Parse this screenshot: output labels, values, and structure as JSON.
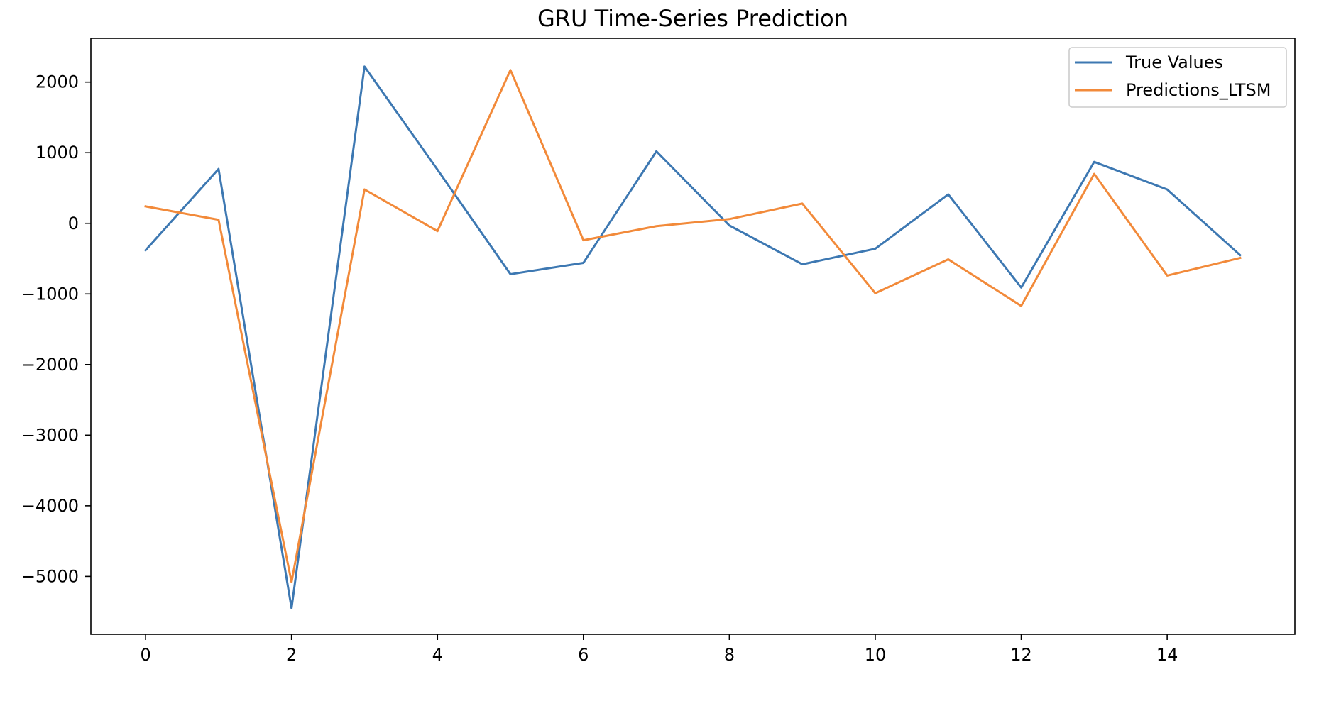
{
  "chart_data": {
    "type": "line",
    "title": "GRU Time-Series Prediction",
    "xlabel": "",
    "ylabel": "",
    "xlim": [
      -0.75,
      15.75
    ],
    "ylim": [
      -5820,
      2620
    ],
    "grid": false,
    "legend_position": "top-right",
    "x": [
      0,
      1,
      2,
      3,
      4,
      5,
      6,
      7,
      8,
      9,
      10,
      11,
      12,
      13,
      14,
      15
    ],
    "x_ticks": [
      0,
      2,
      4,
      6,
      8,
      10,
      12,
      14
    ],
    "x_tick_labels": [
      "0",
      "2",
      "4",
      "6",
      "8",
      "10",
      "12",
      "14"
    ],
    "y_ticks": [
      2000,
      1000,
      0,
      -1000,
      -2000,
      -3000,
      -4000,
      -5000
    ],
    "y_tick_labels": [
      "2000",
      "1000",
      "0",
      "−1000",
      "−2000",
      "−3000",
      "−4000",
      "−5000"
    ],
    "series": [
      {
        "name": "True Values",
        "color": "#3d78b2",
        "values": [
          -380,
          770,
          -5450,
          2220,
          760,
          -720,
          -560,
          1020,
          -30,
          -580,
          -360,
          410,
          -910,
          870,
          480,
          -450
        ]
      },
      {
        "name": "Predictions_LTSM",
        "color": "#f28a3a",
        "values": [
          240,
          50,
          -5080,
          480,
          -110,
          2170,
          -240,
          -40,
          60,
          280,
          -990,
          -510,
          -1170,
          700,
          -740,
          -490
        ]
      }
    ]
  }
}
